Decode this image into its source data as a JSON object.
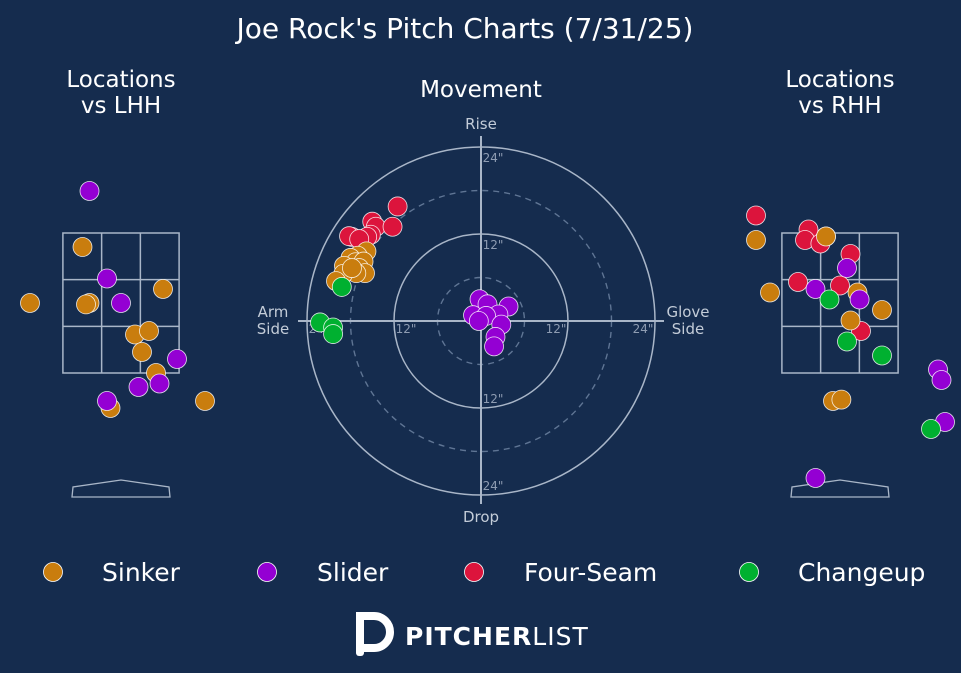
{
  "title": "Joe Rock's Pitch Charts (7/31/25)",
  "brand": {
    "bold": "PITCHER",
    "light": "LIST",
    "logo": "pitcherlist-p-logo"
  },
  "colors": {
    "background": "#152c4e",
    "Sinker": "#c97d0e",
    "Slider": "#9400d3",
    "Four-Seam": "#dc143c",
    "Changeup": "#00b030"
  },
  "legend": [
    "Sinker",
    "Slider",
    "Four-Seam",
    "Changeup"
  ],
  "chart_data": [
    {
      "type": "scatter",
      "title": "Locations\nvs LHH",
      "units": "feet (catcher view), plate x / plate height",
      "zone": {
        "x": [
          -0.83,
          0.83
        ],
        "z": [
          1.5,
          3.5
        ]
      },
      "points": [
        {
          "pitch": "Sinker",
          "x": -0.55,
          "z": 3.3
        },
        {
          "pitch": "Sinker",
          "x": -1.3,
          "z": 2.5
        },
        {
          "pitch": "Sinker",
          "x": -0.45,
          "z": 2.5
        },
        {
          "pitch": "Sinker",
          "x": -0.5,
          "z": 2.48
        },
        {
          "pitch": "Sinker",
          "x": 0.6,
          "z": 2.7
        },
        {
          "pitch": "Sinker",
          "x": 0.2,
          "z": 2.05
        },
        {
          "pitch": "Sinker",
          "x": 0.4,
          "z": 2.1
        },
        {
          "pitch": "Sinker",
          "x": 0.3,
          "z": 1.8
        },
        {
          "pitch": "Sinker",
          "x": 0.5,
          "z": 1.5
        },
        {
          "pitch": "Sinker",
          "x": -0.15,
          "z": 1.0
        },
        {
          "pitch": "Sinker",
          "x": 1.2,
          "z": 1.1
        },
        {
          "pitch": "Slider",
          "x": -0.45,
          "z": 4.1
        },
        {
          "pitch": "Slider",
          "x": -0.2,
          "z": 2.85
        },
        {
          "pitch": "Slider",
          "x": 0.0,
          "z": 2.5
        },
        {
          "pitch": "Slider",
          "x": 0.8,
          "z": 1.7
        },
        {
          "pitch": "Slider",
          "x": 0.25,
          "z": 1.3
        },
        {
          "pitch": "Slider",
          "x": 0.55,
          "z": 1.35
        },
        {
          "pitch": "Slider",
          "x": -0.2,
          "z": 1.1
        }
      ]
    },
    {
      "type": "scatter",
      "title": "Movement",
      "units": "inches of break",
      "axes": {
        "top": "Rise",
        "bottom": "Drop",
        "left": "Arm\nSide",
        "right": "Glove\nSide"
      },
      "rings": [
        {
          "r": 6,
          "style": "dashed"
        },
        {
          "r": 12,
          "style": "solid",
          "label": "12\""
        },
        {
          "r": 18,
          "style": "dashed"
        },
        {
          "r": 24,
          "style": "solid",
          "label": "24\""
        }
      ],
      "points": [
        {
          "pitch": "Four-Seam",
          "x": -11.5,
          "z": 15.8
        },
        {
          "pitch": "Four-Seam",
          "x": -15.0,
          "z": 13.7
        },
        {
          "pitch": "Four-Seam",
          "x": -14.5,
          "z": 13.0
        },
        {
          "pitch": "Four-Seam",
          "x": -12.2,
          "z": 13.0
        },
        {
          "pitch": "Four-Seam",
          "x": -15.2,
          "z": 11.9
        },
        {
          "pitch": "Four-Seam",
          "x": -15.7,
          "z": 11.6
        },
        {
          "pitch": "Four-Seam",
          "x": -17.8,
          "z": 11.6
        },
        {
          "pitch": "Four-Seam",
          "x": -18.2,
          "z": 11.7
        },
        {
          "pitch": "Four-Seam",
          "x": -16.8,
          "z": 11.3
        },
        {
          "pitch": "Sinker",
          "x": -15.8,
          "z": 9.6
        },
        {
          "pitch": "Sinker",
          "x": -17.0,
          "z": 9.0
        },
        {
          "pitch": "Sinker",
          "x": -18.0,
          "z": 8.7
        },
        {
          "pitch": "Sinker",
          "x": -17.3,
          "z": 8.1
        },
        {
          "pitch": "Sinker",
          "x": -16.2,
          "z": 8.2
        },
        {
          "pitch": "Sinker",
          "x": -18.9,
          "z": 7.6
        },
        {
          "pitch": "Sinker",
          "x": -16.8,
          "z": 7.3
        },
        {
          "pitch": "Sinker",
          "x": -16.0,
          "z": 6.6
        },
        {
          "pitch": "Sinker",
          "x": -17.2,
          "z": 6.6
        },
        {
          "pitch": "Sinker",
          "x": -19.0,
          "z": 6.5
        },
        {
          "pitch": "Sinker",
          "x": -17.8,
          "z": 7.3
        },
        {
          "pitch": "Sinker",
          "x": -20.0,
          "z": 5.5
        },
        {
          "pitch": "Changeup",
          "x": -19.2,
          "z": 4.7
        },
        {
          "pitch": "Changeup",
          "x": -22.2,
          "z": -0.2
        },
        {
          "pitch": "Changeup",
          "x": -20.4,
          "z": -0.9
        },
        {
          "pitch": "Changeup",
          "x": -20.4,
          "z": -1.8
        },
        {
          "pitch": "Slider",
          "x": -0.2,
          "z": 3.0
        },
        {
          "pitch": "Slider",
          "x": 0.9,
          "z": 2.3
        },
        {
          "pitch": "Slider",
          "x": 3.8,
          "z": 2.0
        },
        {
          "pitch": "Slider",
          "x": 2.4,
          "z": 0.9
        },
        {
          "pitch": "Slider",
          "x": -1.1,
          "z": 0.8
        },
        {
          "pitch": "Slider",
          "x": 0.7,
          "z": 0.7
        },
        {
          "pitch": "Slider",
          "x": -0.3,
          "z": 0.0
        },
        {
          "pitch": "Slider",
          "x": 2.8,
          "z": -0.5
        },
        {
          "pitch": "Slider",
          "x": 2.0,
          "z": -2.2
        },
        {
          "pitch": "Slider",
          "x": 1.8,
          "z": -3.5
        }
      ]
    },
    {
      "type": "scatter",
      "title": "Locations\nvs RHH",
      "units": "feet (catcher view), plate x / plate height",
      "zone": {
        "x": [
          -0.83,
          0.83
        ],
        "z": [
          1.5,
          3.5
        ]
      },
      "points": [
        {
          "pitch": "Four-Seam",
          "x": -1.2,
          "z": 3.75
        },
        {
          "pitch": "Four-Seam",
          "x": -0.45,
          "z": 3.55
        },
        {
          "pitch": "Four-Seam",
          "x": -0.5,
          "z": 3.4
        },
        {
          "pitch": "Four-Seam",
          "x": -0.2,
          "z": 3.45
        },
        {
          "pitch": "Four-Seam",
          "x": -0.28,
          "z": 3.35
        },
        {
          "pitch": "Four-Seam",
          "x": 0.15,
          "z": 3.2
        },
        {
          "pitch": "Four-Seam",
          "x": -0.6,
          "z": 2.8
        },
        {
          "pitch": "Four-Seam",
          "x": 0.0,
          "z": 2.75
        },
        {
          "pitch": "Four-Seam",
          "x": 0.3,
          "z": 2.1
        },
        {
          "pitch": "Sinker",
          "x": -1.2,
          "z": 3.4
        },
        {
          "pitch": "Sinker",
          "x": -0.2,
          "z": 3.45
        },
        {
          "pitch": "Sinker",
          "x": -1.0,
          "z": 2.65
        },
        {
          "pitch": "Sinker",
          "x": 0.25,
          "z": 2.65
        },
        {
          "pitch": "Sinker",
          "x": 0.6,
          "z": 2.4
        },
        {
          "pitch": "Sinker",
          "x": 0.15,
          "z": 2.25
        },
        {
          "pitch": "Sinker",
          "x": -0.1,
          "z": 1.1
        },
        {
          "pitch": "Sinker",
          "x": 0.02,
          "z": 1.12
        },
        {
          "pitch": "Slider",
          "x": 0.1,
          "z": 3.0
        },
        {
          "pitch": "Slider",
          "x": -0.35,
          "z": 2.7
        },
        {
          "pitch": "Slider",
          "x": 0.28,
          "z": 2.55
        },
        {
          "pitch": "Slider",
          "x": 1.4,
          "z": 1.55
        },
        {
          "pitch": "Slider",
          "x": 1.45,
          "z": 1.4
        },
        {
          "pitch": "Slider",
          "x": 1.5,
          "z": 0.8
        },
        {
          "pitch": "Slider",
          "x": -0.35,
          "z": 0.0
        },
        {
          "pitch": "Changeup",
          "x": -0.15,
          "z": 2.55
        },
        {
          "pitch": "Changeup",
          "x": 0.1,
          "z": 1.95
        },
        {
          "pitch": "Changeup",
          "x": 0.6,
          "z": 1.75
        },
        {
          "pitch": "Changeup",
          "x": 1.3,
          "z": 0.7
        }
      ]
    }
  ]
}
